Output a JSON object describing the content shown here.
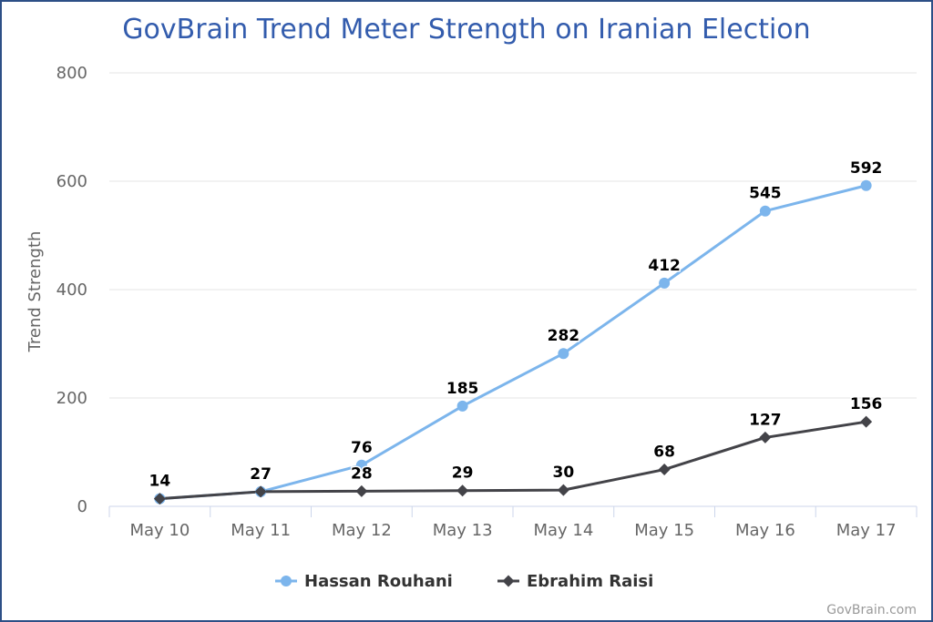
{
  "chart_data": {
    "type": "line",
    "title": "GovBrain Trend Meter Strength on Iranian Election",
    "xlabel": "",
    "ylabel": "Trend Strength",
    "categories": [
      "May 10",
      "May 11",
      "May 12",
      "May 13",
      "May 14",
      "May 15",
      "May 16",
      "May 17"
    ],
    "ylim": [
      0,
      800
    ],
    "yticks": [
      0,
      200,
      400,
      600,
      800
    ],
    "grid": true,
    "legend_position": "bottom-center",
    "series": [
      {
        "name": "Hassan Rouhani",
        "values": [
          14,
          27,
          76,
          185,
          282,
          412,
          545,
          592
        ],
        "color": "#7cb5ec",
        "marker": "circle"
      },
      {
        "name": "Ebrahim Raisi",
        "values": [
          14,
          27,
          28,
          29,
          30,
          68,
          127,
          156
        ],
        "color": "#434348",
        "marker": "diamond"
      }
    ],
    "data_labels": [
      {
        "series": 0,
        "values": [
          "14",
          "27",
          "76",
          "185",
          "282",
          "412",
          "545",
          "592"
        ]
      },
      {
        "series": 1,
        "values": [
          "",
          "",
          "28",
          "29",
          "30",
          "68",
          "127",
          "156"
        ]
      }
    ]
  },
  "credit": "GovBrain.com"
}
